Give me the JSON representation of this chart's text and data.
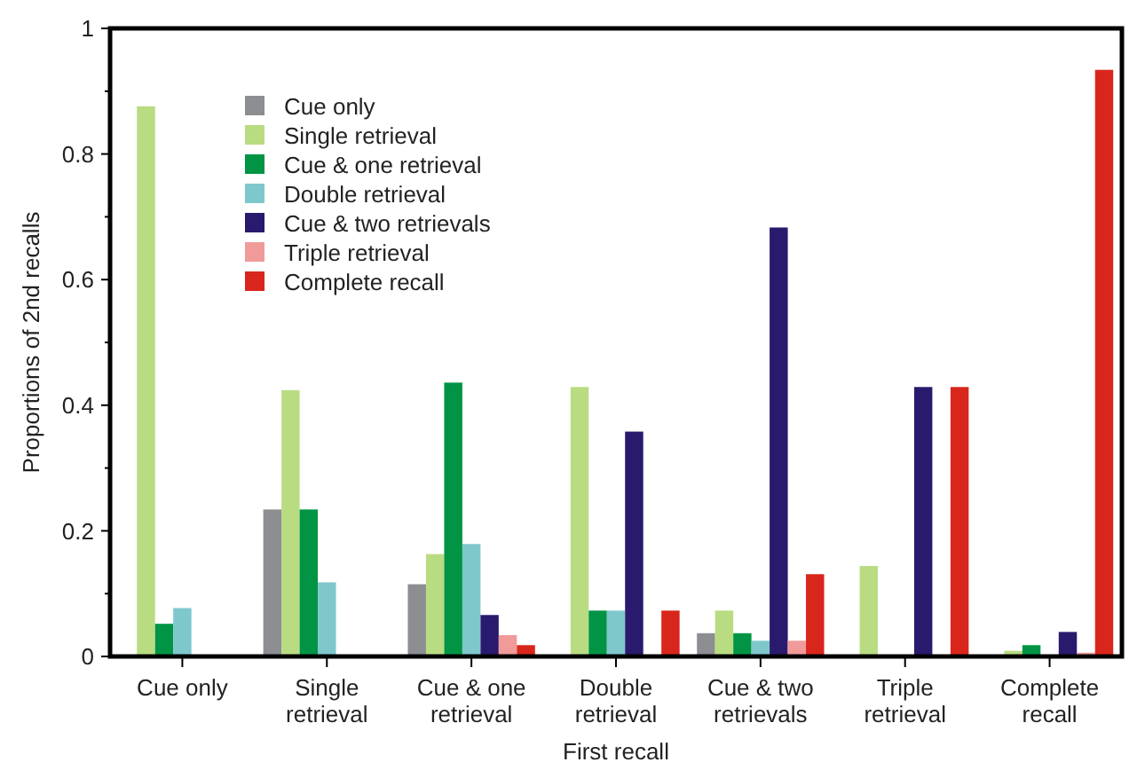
{
  "chart_data": {
    "type": "bar",
    "xlabel": "First recall",
    "ylabel": "Proportions of 2nd recalls",
    "categories": [
      "Cue only",
      "Single retrieval",
      "Cue & one retrieval",
      "Double retrieval",
      "Cue & two retrievals",
      "Triple retrieval",
      "Complete recall"
    ],
    "series": [
      {
        "name": "Cue only",
        "color": "#8c8e91",
        "values": [
          null,
          0.234,
          0.115,
          null,
          0.037,
          null,
          null
        ]
      },
      {
        "name": "Single retrieval",
        "color": "#b9dc82",
        "values": [
          0.876,
          0.424,
          0.163,
          0.429,
          0.073,
          0.144,
          0.009
        ]
      },
      {
        "name": "Cue & one retrieval",
        "color": "#009444",
        "values": [
          0.052,
          0.234,
          0.436,
          0.073,
          0.037,
          null,
          0.018
        ]
      },
      {
        "name": "Double retrieval",
        "color": "#7ec8cc",
        "values": [
          0.077,
          0.118,
          0.179,
          0.073,
          0.025,
          null,
          null
        ]
      },
      {
        "name": "Cue & two retrievals",
        "color": "#2a1a6e",
        "values": [
          null,
          null,
          0.066,
          0.358,
          0.683,
          0.429,
          0.039
        ]
      },
      {
        "name": "Triple retrieval",
        "color": "#f09a9a",
        "values": [
          null,
          null,
          0.034,
          null,
          0.025,
          null,
          0.006
        ]
      },
      {
        "name": "Complete recall",
        "color": "#d9261c",
        "values": [
          null,
          null,
          0.018,
          0.073,
          0.131,
          0.429,
          0.934
        ]
      }
    ],
    "ylim": [
      0,
      1
    ],
    "yticks": [
      0,
      {
        "value": 0.1,
        "label": null
      },
      0.2,
      {
        "value": 0.3,
        "label": null
      },
      0.4,
      {
        "value": 0.5,
        "label": null
      },
      0.6,
      {
        "value": 0.7,
        "label": null
      },
      0.8,
      {
        "value": 0.9,
        "label": null
      },
      1
    ],
    "grid": false,
    "legend": "top left"
  }
}
